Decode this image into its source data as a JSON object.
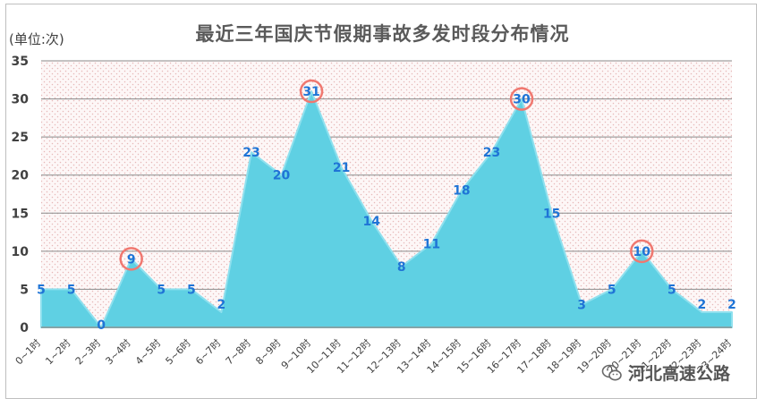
{
  "chart_data": {
    "type": "area",
    "title": "最近三年国庆节假期事故多发时段分布情况",
    "unit_label": "(单位:次)",
    "categories": [
      "0~1时",
      "1~2时",
      "2~3时",
      "3~4时",
      "4~5时",
      "5~6时",
      "6~7时",
      "7~8时",
      "8~9时",
      "9~10时",
      "10~11时",
      "11~12时",
      "12~13时",
      "13~14时",
      "14~15时",
      "15~16时",
      "16~17时",
      "17~18时",
      "18~19时",
      "19~20时",
      "20~21时",
      "21~22时",
      "22~23时",
      "23~24时"
    ],
    "values": [
      5,
      5,
      0,
      9,
      5,
      5,
      2,
      23,
      20,
      31,
      21,
      14,
      8,
      11,
      18,
      23,
      30,
      15,
      3,
      5,
      10,
      5,
      2,
      2
    ],
    "highlighted_indices": [
      3,
      9,
      16,
      20
    ],
    "ylim": [
      0,
      35
    ],
    "yticks": [
      0,
      5,
      10,
      15,
      20,
      25,
      30,
      35
    ],
    "grid": true,
    "legend": "none",
    "colors": {
      "area_fill": "#5fd0e3",
      "area_edge": "#8ee0ee",
      "data_label": "#1f74d6",
      "highlight_circle": "#f07870",
      "grid": "#8a8a8a",
      "plot_bg_dot": "#e6b8b8"
    }
  },
  "watermark": {
    "text": "河北高速公路",
    "icon": "wechat-icon"
  }
}
